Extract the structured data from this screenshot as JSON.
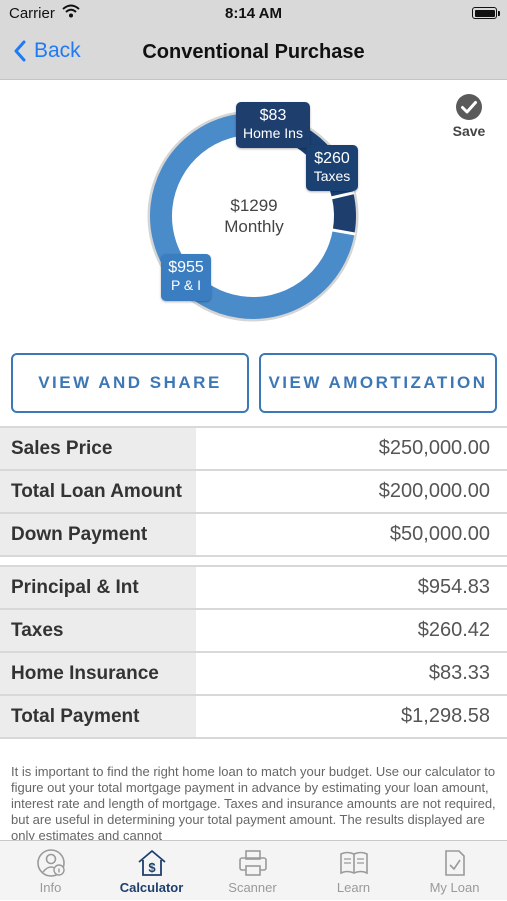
{
  "status": {
    "carrier": "Carrier",
    "time": "8:14 AM"
  },
  "nav": {
    "back_label": "Back",
    "title": "Conventional Purchase"
  },
  "save_label": "Save",
  "chart_data": {
    "type": "pie",
    "categories": [
      "P & I",
      "Taxes",
      "Home Ins"
    ],
    "values": [
      955,
      260,
      83
    ],
    "labels": [
      "$955",
      "$260",
      "$83"
    ],
    "center_amount": "$1299",
    "center_label": "Monthly",
    "colors": [
      "#4a8bc9",
      "#1b4173",
      "#1e3f6e"
    ]
  },
  "buttons": {
    "view_share": "VIEW AND SHARE",
    "view_amort": "VIEW AMORTIZATION"
  },
  "loan_table": [
    {
      "label": "Sales Price",
      "value": "$250,000.00"
    },
    {
      "label": "Total Loan Amount",
      "value": "$200,000.00"
    },
    {
      "label": "Down Payment",
      "value": "$50,000.00"
    }
  ],
  "payment_table": [
    {
      "label": "Principal & Int",
      "value": "$954.83"
    },
    {
      "label": "Taxes",
      "value": "$260.42"
    },
    {
      "label": "Home Insurance",
      "value": "$83.33"
    },
    {
      "label": "Total Payment",
      "value": "$1,298.58"
    }
  ],
  "disclaimer": "It is important to find the right home loan to match your budget. Use our calculator to figure out your total mortgage payment in advance by estimating your loan amount, interest rate and length of mortgage. Taxes and insurance amounts are not required, but are useful in determining your total payment amount.  The results displayed are only estimates and cannot",
  "tabs": [
    {
      "label": "Info",
      "icon": "info-person-icon"
    },
    {
      "label": "Calculator",
      "icon": "calculator-house-icon",
      "active": true
    },
    {
      "label": "Scanner",
      "icon": "printer-icon"
    },
    {
      "label": "Learn",
      "icon": "book-icon"
    },
    {
      "label": "My Loan",
      "icon": "document-check-icon"
    }
  ],
  "accent_color": "#3d78b6"
}
